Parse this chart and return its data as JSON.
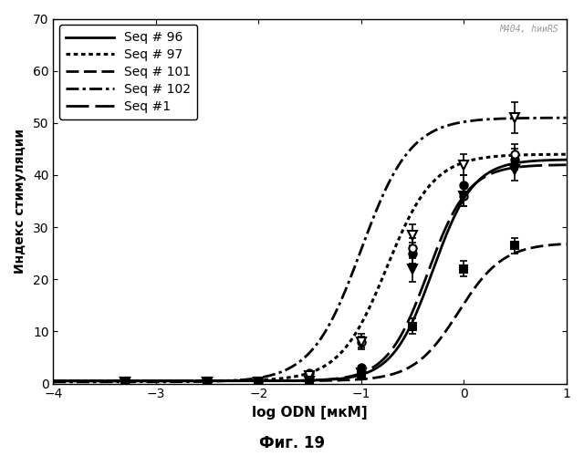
{
  "title": "",
  "xlabel": "log ODN [мкМ]",
  "ylabel": "Индекс стимуляции",
  "fig_caption": "Фиг. 19",
  "xlim": [
    -4,
    1
  ],
  "ylim": [
    0,
    70
  ],
  "xticks": [
    -4,
    -3,
    -2,
    -1,
    0,
    1
  ],
  "yticks": [
    0,
    10,
    20,
    30,
    40,
    50,
    60,
    70
  ],
  "watermark": "M404, hииRS",
  "series": [
    {
      "label": "Seq # 96",
      "linestyle_key": "solid",
      "linewidth": 2.0,
      "color": "#000000",
      "marker": "o",
      "marker_filled": true,
      "marker_size": 6,
      "ec50_log": -0.3,
      "ymax": 43.0,
      "ymin": 0.5,
      "hill": 2.2,
      "x_data": [
        -3.3,
        -2.5,
        -2.0,
        -1.5,
        -1.0,
        -0.5,
        0.0,
        0.5
      ],
      "y_data": [
        0.5,
        0.5,
        0.5,
        0.8,
        3.0,
        25.0,
        38.0,
        43.0
      ],
      "y_err": [
        0.1,
        0.1,
        0.1,
        0.2,
        0.5,
        2.0,
        2.0,
        2.0
      ]
    },
    {
      "label": "Seq # 97",
      "linestyle_key": "dotted",
      "linewidth": 2.2,
      "color": "#000000",
      "marker": "o",
      "marker_filled": false,
      "marker_size": 6,
      "ec50_log": -0.75,
      "ymax": 44.0,
      "ymin": 0.5,
      "hill": 1.9,
      "x_data": [
        -3.3,
        -2.5,
        -2.0,
        -1.5,
        -1.0,
        -0.5,
        0.0,
        0.5
      ],
      "y_data": [
        0.5,
        0.5,
        0.5,
        2.0,
        8.0,
        26.0,
        36.0,
        44.0
      ],
      "y_err": [
        0.1,
        0.1,
        0.1,
        0.3,
        1.0,
        2.0,
        2.0,
        2.0
      ]
    },
    {
      "label": "Seq # 101",
      "linestyle_key": "dashed",
      "linewidth": 2.0,
      "color": "#000000",
      "marker": "s",
      "marker_filled": true,
      "marker_size": 6,
      "ec50_log": -0.05,
      "ymax": 27.0,
      "ymin": 0.5,
      "hill": 2.0,
      "x_data": [
        -3.3,
        -2.5,
        -2.0,
        -1.5,
        -1.0,
        -0.5,
        0.0,
        0.5
      ],
      "y_data": [
        0.5,
        0.5,
        0.5,
        0.5,
        1.5,
        11.0,
        22.0,
        26.5
      ],
      "y_err": [
        0.1,
        0.1,
        0.1,
        0.1,
        0.3,
        1.5,
        1.5,
        1.5
      ]
    },
    {
      "label": "Seq # 102",
      "linestyle_key": "dashdot",
      "linewidth": 2.0,
      "color": "#000000",
      "marker": "v",
      "marker_filled": false,
      "marker_size": 7,
      "ec50_log": -1.0,
      "ymax": 51.0,
      "ymin": 0.3,
      "hill": 1.8,
      "x_data": [
        -3.3,
        -2.5,
        -2.0,
        -1.5,
        -1.0,
        -0.5,
        0.0,
        0.5
      ],
      "y_data": [
        0.3,
        0.3,
        0.3,
        1.5,
        8.0,
        28.5,
        42.0,
        51.0
      ],
      "y_err": [
        0.1,
        0.1,
        0.1,
        0.3,
        1.5,
        2.0,
        2.0,
        3.0
      ]
    },
    {
      "label": "Seq #1",
      "linestyle_key": "longdash",
      "linewidth": 2.0,
      "color": "#000000",
      "marker": "v",
      "marker_filled": true,
      "marker_size": 7,
      "ec50_log": -0.35,
      "ymax": 42.0,
      "ymin": 0.5,
      "hill": 2.2,
      "x_data": [
        -3.3,
        -2.5,
        -2.0,
        -1.5,
        -1.0,
        -0.5,
        0.0,
        0.5
      ],
      "y_data": [
        0.3,
        0.3,
        0.3,
        0.5,
        2.0,
        22.0,
        36.0,
        41.0
      ],
      "y_err": [
        0.1,
        0.1,
        0.1,
        0.2,
        0.5,
        2.5,
        2.0,
        2.0
      ]
    }
  ]
}
